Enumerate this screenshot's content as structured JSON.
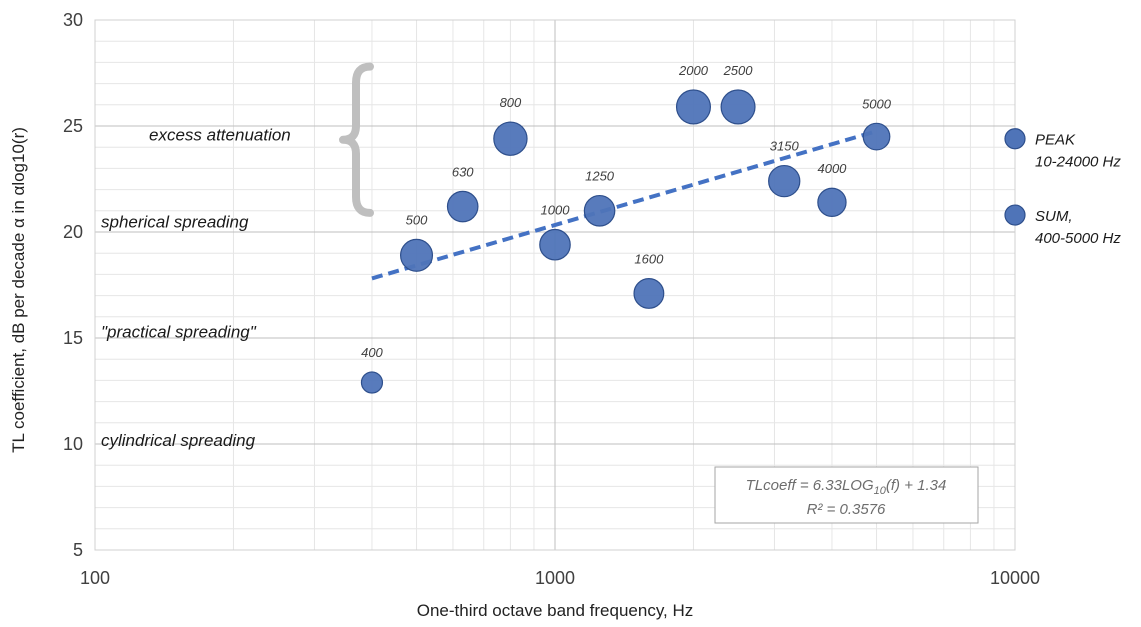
{
  "chart_data": {
    "type": "scatter",
    "x_scale": "log",
    "xlim": [
      100,
      10000
    ],
    "ylim": [
      5,
      30
    ],
    "x_major_ticks": [
      100,
      1000,
      10000
    ],
    "x_tick_labels": [
      "100",
      "1000",
      "10000"
    ],
    "y_ticks": [
      5,
      10,
      15,
      20,
      25,
      30
    ],
    "y_tick_labels": [
      "5",
      "10",
      "15",
      "20",
      "25",
      "30"
    ],
    "xlabel": "One-third octave band frequency, Hz",
    "ylabel": "TL coefficient, dB per decade α in αlog10(r)",
    "grid": true,
    "bubble_color": "#4f74b8",
    "bubble_stroke": "#2e4f8c",
    "trend_color": "#4472c4",
    "brace_color": "#bfbfbf",
    "points": [
      {
        "label": "400",
        "x": 400,
        "y": 12.9,
        "size": 1
      },
      {
        "label": "500",
        "x": 500,
        "y": 18.9,
        "size": 2.3
      },
      {
        "label": "630",
        "x": 630,
        "y": 21.2,
        "size": 2.1
      },
      {
        "label": "800",
        "x": 800,
        "y": 24.4,
        "size": 2.5
      },
      {
        "label": "1000",
        "x": 1000,
        "y": 19.4,
        "size": 2.1
      },
      {
        "label": "1250",
        "x": 1250,
        "y": 21.0,
        "size": 2.1
      },
      {
        "label": "1600",
        "x": 1600,
        "y": 17.1,
        "size": 2.0
      },
      {
        "label": "2000",
        "x": 2000,
        "y": 25.9,
        "size": 2.6
      },
      {
        "label": "2500",
        "x": 2500,
        "y": 25.9,
        "size": 2.6
      },
      {
        "label": "3150",
        "x": 3150,
        "y": 22.4,
        "size": 2.2
      },
      {
        "label": "4000",
        "x": 4000,
        "y": 21.4,
        "size": 1.8
      },
      {
        "label": "5000",
        "x": 5000,
        "y": 24.5,
        "size": 1.6
      }
    ],
    "side_points": [
      {
        "name": "PEAK",
        "name_line1": "PEAK",
        "name_line2": "10-24000 Hz",
        "x": 10000,
        "y": 24.4
      },
      {
        "name": "SUM",
        "name_line1": "SUM,",
        "name_line2": "400-5000 Hz",
        "x": 10000,
        "y": 20.8
      }
    ],
    "trendline": {
      "equation_text": "TLcoeff = 6.33LOG",
      "equation_sub": "10",
      "equation_tail": "(f) + 1.34",
      "r2_text": "R² = 0.3576",
      "slope": 6.33,
      "intercept": 1.34,
      "x_from": 400,
      "x_to": 5000
    },
    "annotations": [
      {
        "text": "excess attenuation",
        "y": 24.6
      },
      {
        "text": "spherical spreading",
        "y": 20.5
      },
      {
        "text": "\"practical spreading\"",
        "y": 15.3
      },
      {
        "text": "cylindrical spreading",
        "y": 10.2
      }
    ]
  }
}
